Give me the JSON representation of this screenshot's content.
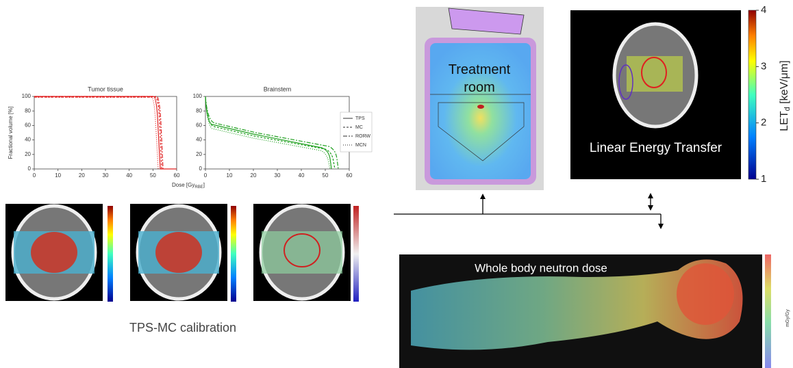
{
  "dvh": {
    "ylabel": "Fractional volume [%]",
    "xlabel": [
      "Dose [Gy",
      "RBE",
      "]"
    ],
    "plots": [
      {
        "title": "Tumor tissue"
      },
      {
        "title": "Brainstem"
      }
    ],
    "xticks": [
      0,
      10,
      20,
      30,
      40,
      50,
      60
    ],
    "yticks": [
      0,
      20,
      40,
      60,
      80,
      100
    ],
    "legend": [
      "TPS",
      "MC",
      "RORW",
      "MCN"
    ]
  },
  "calibration": {
    "caption": "TPS-MC calibration"
  },
  "treatment_room": {
    "label": "Treatment room"
  },
  "let": {
    "label": "Linear Energy Transfer",
    "axis_label": [
      "LET",
      "d",
      " [keV/μm]"
    ],
    "ticks": [
      1,
      2,
      3,
      4
    ]
  },
  "neutron": {
    "title": "Whole body neutron dose",
    "unit": "mGy/Gy"
  }
}
